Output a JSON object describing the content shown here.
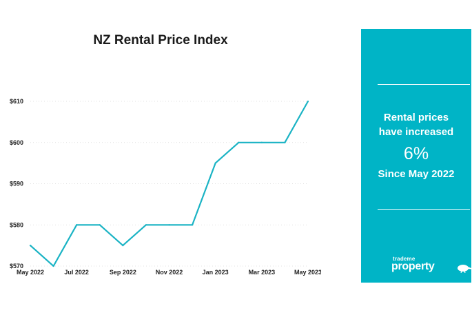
{
  "chart_data": {
    "type": "line",
    "title": "NZ Rental Price Index",
    "xlabel": "",
    "ylabel": "",
    "x": [
      "May 2022",
      "Jun 2022",
      "Jul 2022",
      "Aug 2022",
      "Sep 2022",
      "Oct 2022",
      "Nov 2022",
      "Dec 2022",
      "Jan 2023",
      "Feb 2023",
      "Mar 2023",
      "Apr 2023",
      "May 2023"
    ],
    "x_tick_labels": [
      "May 2022",
      "Jul 2022",
      "Sep 2022",
      "Nov 2022",
      "Jan 2023",
      "Mar 2023",
      "May 2023"
    ],
    "y_tick_labels": [
      "$570",
      "$580",
      "$590",
      "$600",
      "$610"
    ],
    "series": [
      {
        "values": [
          575,
          570,
          580,
          580,
          575,
          580,
          580,
          580,
          595,
          600,
          600,
          600,
          610
        ]
      }
    ],
    "ylim": [
      570,
      610
    ],
    "grid": true,
    "line_color": "#1ab3c4"
  },
  "panel": {
    "line1": "Rental prices",
    "line2": "have increased",
    "percent": "6%",
    "since": "Since May 2022",
    "brand_small": "trademe",
    "brand_main": "property",
    "background_color": "#00b4c6",
    "brand_icon": "kiwi-bird-icon"
  }
}
